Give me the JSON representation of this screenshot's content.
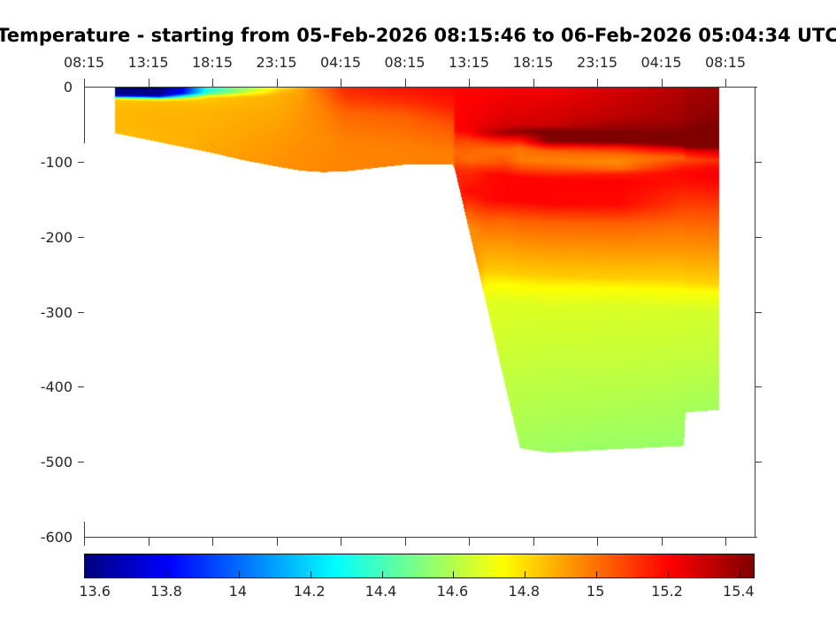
{
  "figure": {
    "title": "Temperature - starting from 05-Feb-2026 08:15:46 to 06-Feb-2026 05:04:34 UTC",
    "background_color": "#ffffff",
    "axis_color": "#3d3d3d",
    "label_color": "#262626"
  },
  "chart_data": {
    "type": "heatmap",
    "title": "Temperature - starting from 05-Feb-2026 08:15:46 to 06-Feb-2026 05:04:34 UTC",
    "x_axis": {
      "position": "top",
      "tick_labels": [
        "08:15",
        "13:15",
        "18:15",
        "23:15",
        "04:15",
        "08:15",
        "13:15",
        "18:15",
        "23:15",
        "04:15",
        "08:15"
      ]
    },
    "y_axis": {
      "tick_labels": [
        "0",
        "-100",
        "-200",
        "-300",
        "-400",
        "-500",
        "-600"
      ],
      "tick_values": [
        0,
        -100,
        -200,
        -300,
        -400,
        -500,
        -600
      ],
      "range": [
        0,
        -600
      ]
    },
    "colorbar": {
      "colormap": "jet",
      "vmin": 13.57,
      "vmax": 15.44,
      "tick_labels": [
        "13.6",
        "13.8",
        "14",
        "14.2",
        "14.4",
        "14.6",
        "14.8",
        "15",
        "15.2",
        "15.4"
      ],
      "tick_values": [
        13.6,
        13.8,
        14,
        14.2,
        14.4,
        14.6,
        14.8,
        15,
        15.2,
        15.4
      ]
    },
    "gap_color": "#ffffff",
    "depth_range_m": [
      0,
      600
    ],
    "profiles_note": "t = fractional position along time axis; b = max sampled depth (m); p = [depth_m, temperature_C] breakpoints",
    "profiles": [
      {
        "t": 0.0461,
        "b": 62,
        "p": [
          [
            0,
            13.57
          ],
          [
            10,
            13.58
          ],
          [
            13,
            13.92
          ],
          [
            15,
            14.55
          ],
          [
            18,
            14.85
          ],
          [
            40,
            14.87
          ],
          [
            62,
            14.86
          ]
        ]
      },
      {
        "t": 0.1118,
        "b": 74,
        "p": [
          [
            0,
            13.57
          ],
          [
            11,
            13.6
          ],
          [
            14,
            13.97
          ],
          [
            17,
            14.68
          ],
          [
            20,
            14.86
          ],
          [
            45,
            14.88
          ],
          [
            74,
            14.87
          ]
        ]
      },
      {
        "t": 0.1447,
        "b": 80,
        "p": [
          [
            0,
            13.76
          ],
          [
            9,
            13.8
          ],
          [
            13,
            14.25
          ],
          [
            17,
            14.76
          ],
          [
            20,
            14.86
          ],
          [
            45,
            14.88
          ],
          [
            80,
            14.88
          ]
        ]
      },
      {
        "t": 0.1842,
        "b": 87,
        "p": [
          [
            0,
            14.3
          ],
          [
            8,
            14.35
          ],
          [
            12,
            14.65
          ],
          [
            15,
            14.84
          ],
          [
            35,
            14.88
          ],
          [
            70,
            14.89
          ],
          [
            87,
            14.9
          ]
        ]
      },
      {
        "t": 0.2368,
        "b": 98,
        "p": [
          [
            0,
            14.52
          ],
          [
            7,
            14.6
          ],
          [
            11,
            14.78
          ],
          [
            14,
            14.86
          ],
          [
            35,
            14.89
          ],
          [
            75,
            14.91
          ],
          [
            98,
            14.92
          ]
        ]
      },
      {
        "t": 0.2895,
        "b": 107,
        "p": [
          [
            0,
            14.76
          ],
          [
            5,
            14.82
          ],
          [
            10,
            14.88
          ],
          [
            35,
            14.9
          ],
          [
            80,
            14.93
          ],
          [
            107,
            14.94
          ]
        ]
      },
      {
        "t": 0.3224,
        "b": 112,
        "p": [
          [
            0,
            14.9
          ],
          [
            8,
            14.91
          ],
          [
            30,
            14.93
          ],
          [
            70,
            14.94
          ],
          [
            112,
            14.95
          ]
        ]
      },
      {
        "t": 0.3553,
        "b": 114,
        "p": [
          [
            0,
            15.03
          ],
          [
            12,
            15.0
          ],
          [
            30,
            14.97
          ],
          [
            70,
            14.95
          ],
          [
            114,
            14.96
          ]
        ]
      },
      {
        "t": 0.3882,
        "b": 113,
        "p": [
          [
            0,
            15.14
          ],
          [
            15,
            15.1
          ],
          [
            35,
            15.02
          ],
          [
            70,
            14.97
          ],
          [
            113,
            14.96
          ]
        ]
      },
      {
        "t": 0.4763,
        "b": 104,
        "p": [
          [
            0,
            15.18
          ],
          [
            18,
            15.13
          ],
          [
            40,
            15.03
          ],
          [
            80,
            14.97
          ],
          [
            104,
            14.97
          ]
        ]
      },
      {
        "t": 0.5487,
        "b": 104,
        "p": [
          [
            0,
            15.2
          ],
          [
            25,
            15.16
          ],
          [
            50,
            15.06
          ],
          [
            85,
            14.98
          ],
          [
            104,
            14.97
          ]
        ]
      },
      {
        "t": 0.5526,
        "b": 114,
        "p": [
          [
            0,
            15.2
          ],
          [
            45,
            15.2
          ],
          [
            55,
            15.22
          ],
          [
            70,
            15.1
          ],
          [
            85,
            15.02
          ],
          [
            100,
            15.05
          ],
          [
            114,
            15.14
          ]
        ]
      },
      {
        "t": 0.5724,
        "b": 190,
        "p": [
          [
            0,
            15.2
          ],
          [
            48,
            15.22
          ],
          [
            60,
            15.2
          ],
          [
            75,
            15.06
          ],
          [
            95,
            14.99
          ],
          [
            112,
            15.12
          ],
          [
            140,
            15.19
          ],
          [
            165,
            15.05
          ],
          [
            190,
            14.94
          ]
        ]
      },
      {
        "t": 0.5987,
        "b": 291,
        "p": [
          [
            0,
            15.2
          ],
          [
            50,
            15.25
          ],
          [
            62,
            15.3
          ],
          [
            72,
            15.12
          ],
          [
            85,
            15.0
          ],
          [
            100,
            15.03
          ],
          [
            116,
            15.18
          ],
          [
            150,
            15.19
          ],
          [
            178,
            15.03
          ],
          [
            208,
            14.93
          ],
          [
            245,
            14.84
          ],
          [
            260,
            14.76
          ],
          [
            280,
            14.7
          ],
          [
            291,
            14.68
          ]
        ]
      },
      {
        "t": 0.625,
        "b": 393,
        "p": [
          [
            0,
            15.21
          ],
          [
            52,
            15.28
          ],
          [
            62,
            15.38
          ],
          [
            72,
            15.15
          ],
          [
            85,
            15.0
          ],
          [
            100,
            15.05
          ],
          [
            118,
            15.2
          ],
          [
            152,
            15.2
          ],
          [
            178,
            15.02
          ],
          [
            212,
            14.92
          ],
          [
            248,
            14.83
          ],
          [
            263,
            14.74
          ],
          [
            287,
            14.68
          ],
          [
            340,
            14.65
          ],
          [
            393,
            14.62
          ]
        ]
      },
      {
        "t": 0.6487,
        "b": 482,
        "p": [
          [
            0,
            15.22
          ],
          [
            50,
            15.28
          ],
          [
            60,
            15.42
          ],
          [
            70,
            15.2
          ],
          [
            82,
            15.0
          ],
          [
            97,
            14.97
          ],
          [
            108,
            15.06
          ],
          [
            121,
            15.2
          ],
          [
            153,
            15.2
          ],
          [
            179,
            15.03
          ],
          [
            213,
            14.93
          ],
          [
            250,
            14.83
          ],
          [
            264,
            14.75
          ],
          [
            288,
            14.68
          ],
          [
            345,
            14.65
          ],
          [
            430,
            14.6
          ],
          [
            482,
            14.57
          ]
        ]
      },
      {
        "t": 0.6908,
        "b": 488,
        "p": [
          [
            0,
            15.22
          ],
          [
            52,
            15.3
          ],
          [
            59,
            15.45
          ],
          [
            72,
            15.44
          ],
          [
            79,
            15.2
          ],
          [
            86,
            15.02
          ],
          [
            99,
            14.97
          ],
          [
            109,
            15.05
          ],
          [
            123,
            15.2
          ],
          [
            156,
            15.2
          ],
          [
            181,
            15.03
          ],
          [
            216,
            14.93
          ],
          [
            253,
            14.83
          ],
          [
            266,
            14.75
          ],
          [
            291,
            14.68
          ],
          [
            350,
            14.64
          ],
          [
            440,
            14.59
          ],
          [
            488,
            14.56
          ]
        ]
      },
      {
        "t": 0.7961,
        "b": 483,
        "p": [
          [
            0,
            15.28
          ],
          [
            40,
            15.33
          ],
          [
            55,
            15.4
          ],
          [
            62,
            15.45
          ],
          [
            74,
            15.44
          ],
          [
            81,
            15.16
          ],
          [
            91,
            15.0
          ],
          [
            100,
            14.95
          ],
          [
            109,
            15.0
          ],
          [
            117,
            15.16
          ],
          [
            127,
            15.21
          ],
          [
            158,
            15.19
          ],
          [
            183,
            15.03
          ],
          [
            218,
            14.93
          ],
          [
            255,
            14.83
          ],
          [
            268,
            14.74
          ],
          [
            293,
            14.67
          ],
          [
            352,
            14.64
          ],
          [
            445,
            14.58
          ],
          [
            483,
            14.55
          ]
        ]
      },
      {
        "t": 0.8921,
        "b": 479,
        "p": [
          [
            0,
            15.35
          ],
          [
            45,
            15.38
          ],
          [
            60,
            15.43
          ],
          [
            67,
            15.45
          ],
          [
            78,
            15.44
          ],
          [
            85,
            15.2
          ],
          [
            95,
            15.03
          ],
          [
            104,
            15.13
          ],
          [
            113,
            15.2
          ],
          [
            130,
            15.17
          ],
          [
            162,
            15.08
          ],
          [
            187,
            15.0
          ],
          [
            221,
            14.92
          ],
          [
            258,
            14.82
          ],
          [
            271,
            14.74
          ],
          [
            296,
            14.67
          ],
          [
            358,
            14.63
          ],
          [
            450,
            14.57
          ],
          [
            479,
            14.55
          ]
        ]
      },
      {
        "t": 0.8947,
        "b": 434,
        "p": [
          [
            0,
            15.36
          ],
          [
            45,
            15.4
          ],
          [
            60,
            15.44
          ],
          [
            68,
            15.45
          ],
          [
            80,
            15.44
          ],
          [
            87,
            15.2
          ],
          [
            97,
            15.06
          ],
          [
            106,
            15.15
          ],
          [
            116,
            15.2
          ],
          [
            132,
            15.17
          ],
          [
            164,
            15.07
          ],
          [
            189,
            15.0
          ],
          [
            223,
            14.92
          ],
          [
            260,
            14.82
          ],
          [
            273,
            14.73
          ],
          [
            298,
            14.66
          ],
          [
            362,
            14.63
          ],
          [
            434,
            14.57
          ]
        ]
      },
      {
        "t": 0.9447,
        "b": 431,
        "p": [
          [
            0,
            15.38
          ],
          [
            40,
            15.42
          ],
          [
            55,
            15.45
          ],
          [
            80,
            15.45
          ],
          [
            88,
            15.25
          ],
          [
            98,
            15.12
          ],
          [
            108,
            15.2
          ],
          [
            120,
            15.22
          ],
          [
            136,
            15.17
          ],
          [
            167,
            15.07
          ],
          [
            191,
            15.0
          ],
          [
            226,
            14.92
          ],
          [
            263,
            14.82
          ],
          [
            276,
            14.73
          ],
          [
            301,
            14.66
          ],
          [
            366,
            14.62
          ],
          [
            431,
            14.57
          ]
        ]
      }
    ]
  }
}
